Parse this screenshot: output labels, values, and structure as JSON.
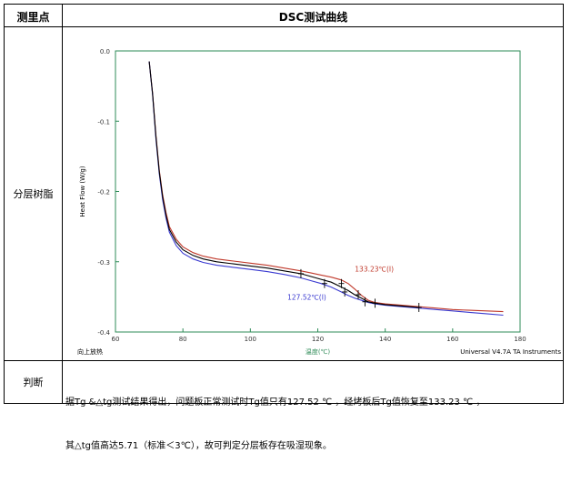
{
  "table": {
    "header_left": "测里点",
    "header_right": "DSC测试曲线",
    "row1_label": "分层树脂",
    "row2_label": "判断",
    "judgement_line1": "据Tg &△tg测试结果得出，问题板正常测试时Tg值只有127.52 ℃ ，经烤板后Tg值恢复至133.23 ℃ ，",
    "judgement_line2": "其△tg值高达5.71（标准＜3℃），故可判定分层板存在吸湿现象。"
  },
  "chart_data": {
    "type": "line",
    "xlabel": "温度(℃)",
    "ylabel": "Heat Flow (W/g)",
    "xlim": [
      60,
      180
    ],
    "ylim": [
      -0.4,
      0.0
    ],
    "x_ticks": [
      "60",
      "80",
      "100",
      "120",
      "140",
      "160",
      "180"
    ],
    "y_ticks": [
      "0.0",
      "-0.1",
      "-0.2",
      "-0.3",
      "-0.4"
    ],
    "corner_left": "向上放热",
    "corner_right": "Universal V4.7A TA Instruments",
    "colors": {
      "red": "#c0392b",
      "blue": "#3a3ad0",
      "black": "#000000",
      "frame": "#2e8b57"
    },
    "series": [
      {
        "color": "red",
        "x": [
          70,
          71,
          72,
          73,
          74,
          75,
          76,
          78,
          80,
          83,
          86,
          90,
          95,
          100,
          105,
          110,
          115,
          118,
          121,
          124,
          127,
          129,
          131,
          133,
          135,
          137,
          140,
          145,
          150,
          155,
          160,
          165,
          170,
          175
        ],
        "y": [
          -0.015,
          -0.06,
          -0.12,
          -0.17,
          -0.205,
          -0.23,
          -0.25,
          -0.268,
          -0.279,
          -0.287,
          -0.292,
          -0.296,
          -0.299,
          -0.302,
          -0.305,
          -0.309,
          -0.313,
          -0.316,
          -0.319,
          -0.322,
          -0.326,
          -0.331,
          -0.339,
          -0.348,
          -0.355,
          -0.358,
          -0.36,
          -0.362,
          -0.364,
          -0.366,
          -0.368,
          -0.369,
          -0.37,
          -0.371
        ]
      },
      {
        "color": "blue",
        "x": [
          70,
          71,
          72,
          73,
          74,
          75,
          76,
          78,
          80,
          83,
          86,
          90,
          95,
          100,
          105,
          110,
          115,
          118,
          121,
          124,
          127,
          129,
          131,
          133,
          135,
          137,
          140,
          145,
          150,
          155,
          160,
          165,
          170,
          175
        ],
        "y": [
          -0.015,
          -0.062,
          -0.125,
          -0.175,
          -0.212,
          -0.238,
          -0.258,
          -0.277,
          -0.288,
          -0.296,
          -0.301,
          -0.305,
          -0.308,
          -0.311,
          -0.314,
          -0.318,
          -0.323,
          -0.327,
          -0.331,
          -0.336,
          -0.343,
          -0.348,
          -0.352,
          -0.355,
          -0.358,
          -0.36,
          -0.362,
          -0.364,
          -0.366,
          -0.368,
          -0.37,
          -0.372,
          -0.374,
          -0.376
        ]
      },
      {
        "color": "black",
        "x": [
          70,
          71,
          72,
          73,
          74,
          75,
          76,
          78,
          80,
          83,
          86,
          90,
          95,
          100,
          105,
          110,
          115,
          118,
          121,
          124,
          127,
          129,
          131,
          133,
          135,
          137,
          140,
          145,
          150
        ],
        "y": [
          -0.015,
          -0.061,
          -0.122,
          -0.172,
          -0.208,
          -0.234,
          -0.254,
          -0.272,
          -0.283,
          -0.291,
          -0.296,
          -0.3,
          -0.303,
          -0.306,
          -0.309,
          -0.313,
          -0.317,
          -0.321,
          -0.325,
          -0.329,
          -0.336,
          -0.341,
          -0.347,
          -0.352,
          -0.357,
          -0.359,
          -0.361,
          -0.363,
          -0.365
        ]
      }
    ],
    "markers": [
      {
        "x": 115,
        "y": -0.317
      },
      {
        "x": 122,
        "y": -0.331
      },
      {
        "x": 127,
        "y": -0.331
      },
      {
        "x": 128,
        "y": -0.343
      },
      {
        "x": 132,
        "y": -0.347
      },
      {
        "x": 134,
        "y": -0.357
      },
      {
        "x": 137,
        "y": -0.359
      },
      {
        "x": 150,
        "y": -0.365
      }
    ],
    "annotations": [
      {
        "text": "133.23℃(I)",
        "color": "red",
        "x": 131,
        "y": -0.314
      },
      {
        "text": "127.52℃(I)",
        "color": "blue",
        "x": 111,
        "y": -0.354
      }
    ]
  }
}
